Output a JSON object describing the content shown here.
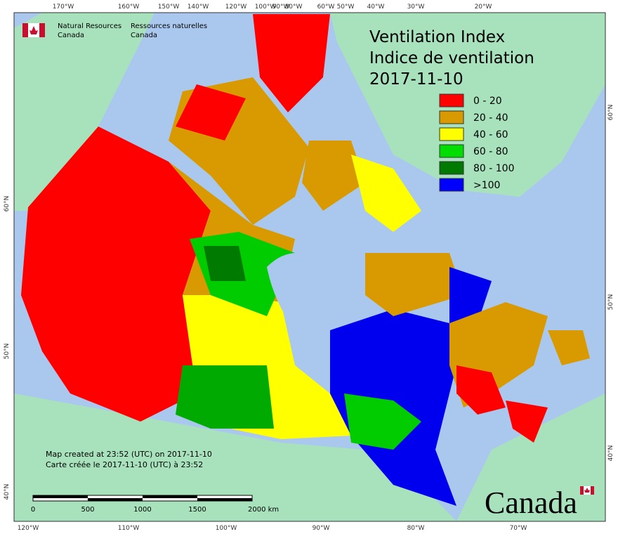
{
  "header": {
    "agency_en": "Natural Resources",
    "agency_en_2": "Canada",
    "agency_fr": "Ressources naturelles",
    "agency_fr_2": "Canada"
  },
  "title": [
    "Ventilation Index",
    "Indice de ventilation",
    "2017-11-10"
  ],
  "legend": [
    {
      "label": "0 - 20",
      "color": "#ff0000"
    },
    {
      "label": "20 - 40",
      "color": "#d89a00"
    },
    {
      "label": "40 - 60",
      "color": "#ffff00"
    },
    {
      "label": "60 - 80",
      "color": "#00dd00"
    },
    {
      "label": "80 - 100",
      "color": "#007a00"
    },
    {
      "label": ">100",
      "color": "#0000ff"
    }
  ],
  "top_labels": [
    "170°W",
    "160°W",
    "150°W",
    "140°W",
    "120°W",
    "100°W",
    "90°W",
    "80°W",
    "60°W",
    "50°W",
    "40°W",
    "30°W",
    "20°W"
  ],
  "bottom_labels": [
    "120°W",
    "110°W",
    "100°W",
    "90°W",
    "80°W",
    "70°W"
  ],
  "left_labels": [
    "60°N",
    "50°N",
    "40°N"
  ],
  "right_labels": [
    "60°N",
    "50°N",
    "40°N"
  ],
  "notes": [
    "Map created at 23:52 (UTC) on 2017-11-10",
    "Carte créée le 2017-11-10 (UTC) à 23:52"
  ],
  "scale_ticks": [
    "0",
    "500",
    "1000",
    "1500",
    "2000 km"
  ],
  "wordmark": "Canada"
}
